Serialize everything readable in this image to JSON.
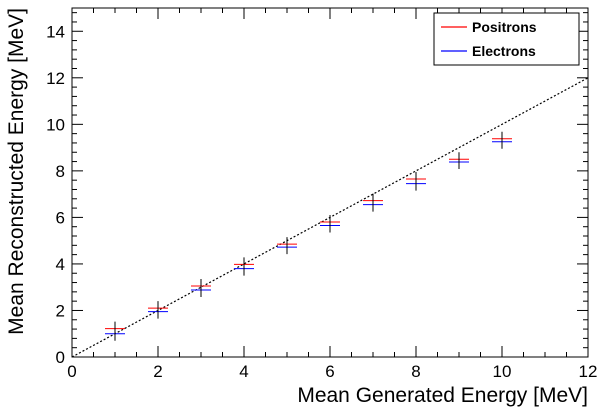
{
  "chart_data": {
    "type": "scatter",
    "xlabel": "Mean Generated Energy [MeV]",
    "ylabel": "Mean Reconstructed Energy [MeV]",
    "xlim": [
      0,
      12
    ],
    "ylim": [
      0,
      15
    ],
    "x_ticks": [
      0,
      2,
      4,
      6,
      8,
      10,
      12
    ],
    "y_ticks": [
      0,
      2,
      4,
      6,
      8,
      10,
      12,
      14
    ],
    "grid": false,
    "legend_position": "top-right",
    "reference_line": {
      "label": "y = x",
      "style": "dotted",
      "color": "#000000"
    },
    "series": [
      {
        "name": "Positrons",
        "color": "#ff0000",
        "x": [
          1,
          2,
          3,
          4,
          5,
          6,
          7,
          8,
          9,
          10
        ],
        "y": [
          1.22,
          2.1,
          3.05,
          3.98,
          4.85,
          5.8,
          6.72,
          7.65,
          8.5,
          9.38
        ]
      },
      {
        "name": "Electrons",
        "color": "#0000ff",
        "x": [
          1,
          2,
          3,
          4,
          5,
          6,
          7,
          8,
          9,
          10
        ],
        "y": [
          1.0,
          1.95,
          2.88,
          3.8,
          4.72,
          5.65,
          6.55,
          7.45,
          8.38,
          9.25
        ]
      }
    ]
  }
}
